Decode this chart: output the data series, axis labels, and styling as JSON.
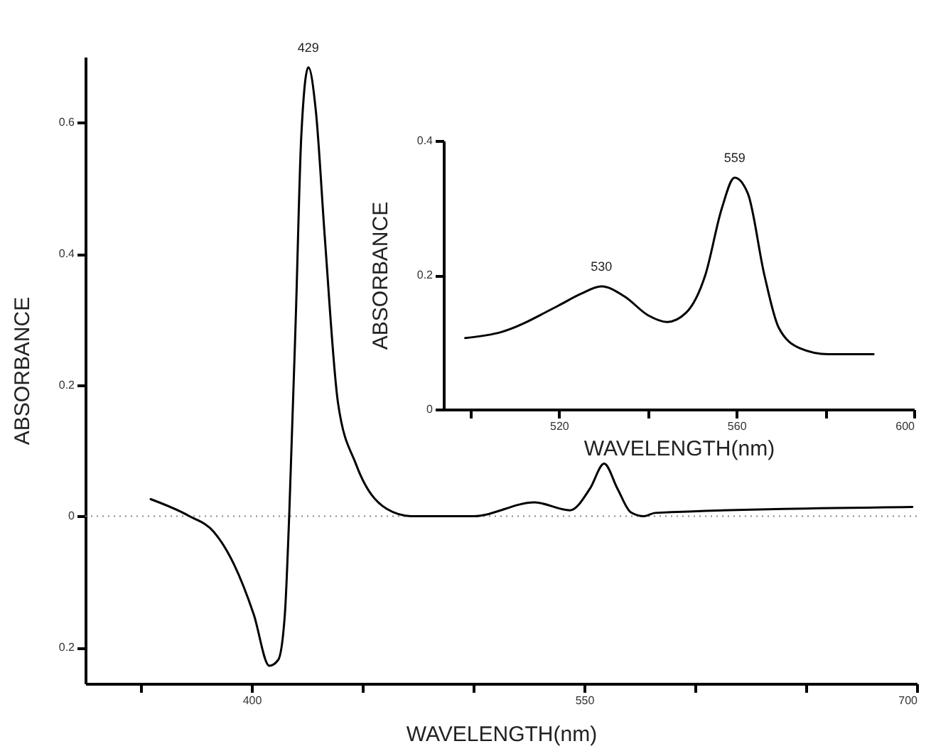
{
  "chart_data": [
    {
      "type": "line",
      "xlabel": "WAVELENGTH(nm)",
      "ylabel": "ABSORBANCE",
      "x": [
        354.5,
        372,
        383,
        392,
        401,
        408,
        412,
        415,
        417,
        420,
        422.4,
        425.6,
        429,
        433,
        439,
        447,
        461,
        472,
        500,
        527.6,
        543.6,
        552.6,
        559,
        565,
        571,
        577,
        582,
        698
      ],
      "series": [
        {
          "color": "#000000",
          "values": [
            0.026,
            0.0,
            -0.024,
            -0.073,
            -0.15,
            -0.228,
            -0.219,
            -0.15,
            0.004,
            0.31,
            0.578,
            0.684,
            0.617,
            0.426,
            0.172,
            0.08,
            0.011,
            0.0,
            0.0,
            0.021,
            0.009,
            0.042,
            0.08,
            0.042,
            0.006,
            0.0,
            0.005,
            0.014
          ]
        }
      ],
      "xlim": [
        325,
        700
      ],
      "ylim": [
        -0.255,
        0.7
      ],
      "xticks": [
        {
          "value": 350,
          "label": null
        },
        400,
        {
          "value": 450,
          "label": null
        },
        {
          "value": 500,
          "label": null
        },
        550,
        {
          "value": 600,
          "label": null
        },
        {
          "value": 650,
          "label": null
        },
        700
      ],
      "yticks": [
        {
          "value": -0.2,
          "label": "0.2"
        },
        0,
        0.2,
        0.4,
        0.6
      ],
      "line_style": "solid",
      "ref_lines": [
        {
          "axis": "y",
          "value": 0,
          "color": "#888888",
          "line_style": "dotted"
        }
      ],
      "annotations": [
        {
          "text": "429",
          "x": 425.6,
          "y": 0.684
        }
      ]
    },
    {
      "type": "line",
      "xlabel": "WAVELENGTH(nm)",
      "ylabel": "ABSORBANCE",
      "x": [
        498.9,
        507,
        519.8,
        525,
        529.6,
        534.8,
        540.1,
        544.4,
        548.7,
        553,
        556.7,
        559.6,
        562.6,
        566.3,
        569.5,
        574.3,
        580.7,
        590.9
      ],
      "series": [
        {
          "color": "#000000",
          "values": [
            0.106,
            0.115,
            0.154,
            0.172,
            0.183,
            0.168,
            0.14,
            0.13,
            0.144,
            0.2,
            0.299,
            0.345,
            0.321,
            0.2,
            0.122,
            0.091,
            0.082,
            0.082
          ]
        }
      ],
      "xlim": [
        494,
        600
      ],
      "ylim": [
        0,
        0.4
      ],
      "xticks": [
        {
          "value": 500,
          "label": null
        },
        520,
        {
          "value": 540,
          "label": null
        },
        560,
        {
          "value": 580,
          "label": null
        },
        600
      ],
      "yticks": [
        0,
        0.2,
        0.4
      ],
      "line_style": "solid",
      "annotations": [
        {
          "text": "530",
          "x": 529.6,
          "y": 0.183
        },
        {
          "text": "559",
          "x": 559.6,
          "y": 0.345
        }
      ]
    }
  ]
}
